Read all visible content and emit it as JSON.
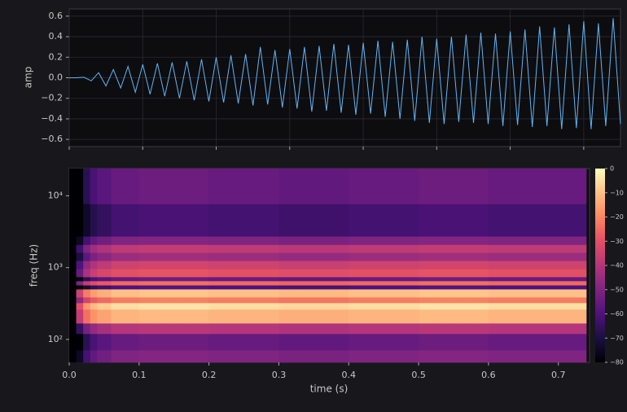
{
  "chart_data": [
    {
      "type": "line",
      "ylabel": "amp",
      "color": "#62b4f5",
      "x": [
        0,
        0.01,
        0.02,
        0.03,
        0.04,
        0.05,
        0.06,
        0.07,
        0.08,
        0.09,
        0.1,
        0.11,
        0.12,
        0.13,
        0.14,
        0.15,
        0.16,
        0.17,
        0.18,
        0.19,
        0.2,
        0.21,
        0.22,
        0.23,
        0.24,
        0.25,
        0.26,
        0.27,
        0.28,
        0.29,
        0.3,
        0.31,
        0.32,
        0.33,
        0.34,
        0.35,
        0.36,
        0.37,
        0.38,
        0.39,
        0.4,
        0.41,
        0.42,
        0.43,
        0.44,
        0.45,
        0.46,
        0.47,
        0.48,
        0.49,
        0.5,
        0.51,
        0.52,
        0.53,
        0.54,
        0.55,
        0.56,
        0.57,
        0.58,
        0.59,
        0.6,
        0.61,
        0.62,
        0.63,
        0.64,
        0.65,
        0.66,
        0.67,
        0.68,
        0.69,
        0.7,
        0.71,
        0.72,
        0.73,
        0.74,
        0.75
      ],
      "values": [
        0,
        0,
        0.005,
        -0.03,
        0.05,
        -0.08,
        0.08,
        -0.1,
        0.11,
        -0.14,
        0.13,
        -0.16,
        0.14,
        -0.18,
        0.15,
        -0.2,
        0.16,
        -0.22,
        0.18,
        -0.23,
        0.2,
        -0.24,
        0.22,
        -0.25,
        0.23,
        -0.27,
        0.3,
        -0.26,
        0.27,
        -0.29,
        0.28,
        -0.3,
        0.3,
        -0.33,
        0.31,
        -0.32,
        0.33,
        -0.34,
        0.32,
        -0.36,
        0.34,
        -0.35,
        0.36,
        -0.38,
        0.35,
        -0.4,
        0.37,
        -0.42,
        0.4,
        -0.44,
        0.38,
        -0.45,
        0.4,
        -0.43,
        0.42,
        -0.44,
        0.44,
        -0.45,
        0.43,
        -0.47,
        0.45,
        -0.46,
        0.47,
        -0.48,
        0.5,
        -0.47,
        0.49,
        -0.5,
        0.52,
        -0.49,
        0.55,
        -0.5,
        0.53,
        -0.47,
        0.58,
        -0.45
      ],
      "xlim": [
        0,
        0.75
      ],
      "xticks": [
        0,
        0.1,
        0.2,
        0.3,
        0.4,
        0.5,
        0.6,
        0.7
      ],
      "ylim": [
        -0.67,
        0.67
      ],
      "yticks": [
        0.6,
        0.4,
        0.2,
        {
          "value": 0,
          "label": "0.0"
        },
        {
          "value": -0.2,
          "label": "−0.2"
        },
        {
          "value": -0.4,
          "label": "−0.4"
        },
        {
          "value": -0.6,
          "label": "−0.6"
        }
      ],
      "grid": true
    },
    {
      "type": "heatmap",
      "xlabel": "time (s)",
      "ylabel": "freq (Hz)",
      "yscale": "log",
      "x_edges": [
        0,
        0.01,
        0.02,
        0.03,
        0.04,
        0.06,
        0.1,
        0.2,
        0.3,
        0.4,
        0.5,
        0.6,
        0.74
      ],
      "y_edges": [
        48,
        71,
        120,
        168,
        262,
        323,
        387,
        502,
        570,
        653,
        742,
        961,
        1250,
        1620,
        2090,
        2730,
        7700,
        24000
      ],
      "values": [
        [
          -80,
          -75,
          -62,
          -56,
          -53,
          -50,
          -49,
          -50,
          -51,
          -50,
          -49,
          -50
        ],
        [
          -80,
          -80,
          -67,
          -61,
          -58,
          -55,
          -54,
          -55,
          -56,
          -55,
          -54,
          -55
        ],
        [
          -80,
          -65,
          -52,
          -46,
          -43,
          -40,
          -39,
          -40,
          -41,
          -40,
          -39,
          -40
        ],
        [
          -80,
          -37,
          -24,
          -18,
          -15,
          -12,
          -11,
          -12,
          -13,
          -12,
          -11,
          -12
        ],
        [
          -80,
          -30,
          -17,
          -11,
          -8,
          -5,
          -4,
          -5,
          -6,
          -5,
          -4,
          -5
        ],
        [
          -80,
          -47,
          -34,
          -28,
          -25,
          -22,
          -21,
          -22,
          -23,
          -22,
          -21,
          -22
        ],
        [
          -80,
          -35,
          -22,
          -16,
          -13,
          -10,
          -9,
          -10,
          -11,
          -10,
          -9,
          -10
        ],
        [
          -80,
          -80,
          -72,
          -66,
          -63,
          -60,
          -59,
          -60,
          -61,
          -60,
          -59,
          -60
        ],
        [
          -80,
          -50,
          -37,
          -31,
          -28,
          -25,
          -24,
          -25,
          -26,
          -25,
          -24,
          -25
        ],
        [
          -80,
          -80,
          -67,
          -61,
          -58,
          -55,
          -54,
          -55,
          -56,
          -55,
          -54,
          -55
        ],
        [
          -80,
          -55,
          -42,
          -36,
          -33,
          -30,
          -29,
          -30,
          -31,
          -30,
          -29,
          -30
        ],
        [
          -80,
          -60,
          -47,
          -41,
          -38,
          -35,
          -34,
          -35,
          -36,
          -35,
          -34,
          -35
        ],
        [
          -80,
          -70,
          -57,
          -51,
          -48,
          -45,
          -44,
          -45,
          -46,
          -45,
          -44,
          -45
        ],
        [
          -80,
          -63,
          -50,
          -44,
          -41,
          -38,
          -37,
          -38,
          -39,
          -38,
          -37,
          -38
        ],
        [
          -80,
          -75,
          -62,
          -56,
          -53,
          -50,
          -49,
          -50,
          -51,
          -50,
          -49,
          -50
        ],
        [
          -80,
          -80,
          -74,
          -68,
          -65,
          -62,
          -61,
          -62,
          -63,
          -62,
          -61,
          -62
        ],
        [
          -80,
          -80,
          -67,
          -61,
          -58,
          -55,
          -54,
          -55,
          -56,
          -55,
          -54,
          -55
        ]
      ],
      "xlim": [
        0,
        0.7446
      ],
      "xticks": [
        {
          "value": 0,
          "label": "0.0"
        },
        0.1,
        0.2,
        0.3,
        0.4,
        0.5,
        0.6,
        0.7
      ],
      "ylim": [
        48,
        24000
      ],
      "yticks": [
        {
          "value": 100,
          "label": "10²"
        },
        {
          "value": 1000,
          "label": "10³"
        },
        {
          "value": 10000,
          "label": "10⁴"
        }
      ],
      "clim": [
        -80,
        0
      ],
      "cticks": [
        0,
        {
          "value": -10,
          "label": "−10"
        },
        {
          "value": -20,
          "label": "−20"
        },
        {
          "value": -30,
          "label": "−30"
        },
        {
          "value": -40,
          "label": "−40"
        },
        {
          "value": -50,
          "label": "−50"
        },
        {
          "value": -60,
          "label": "−60"
        },
        {
          "value": -70,
          "label": "−70"
        },
        {
          "value": -80,
          "label": "−80"
        }
      ]
    }
  ]
}
